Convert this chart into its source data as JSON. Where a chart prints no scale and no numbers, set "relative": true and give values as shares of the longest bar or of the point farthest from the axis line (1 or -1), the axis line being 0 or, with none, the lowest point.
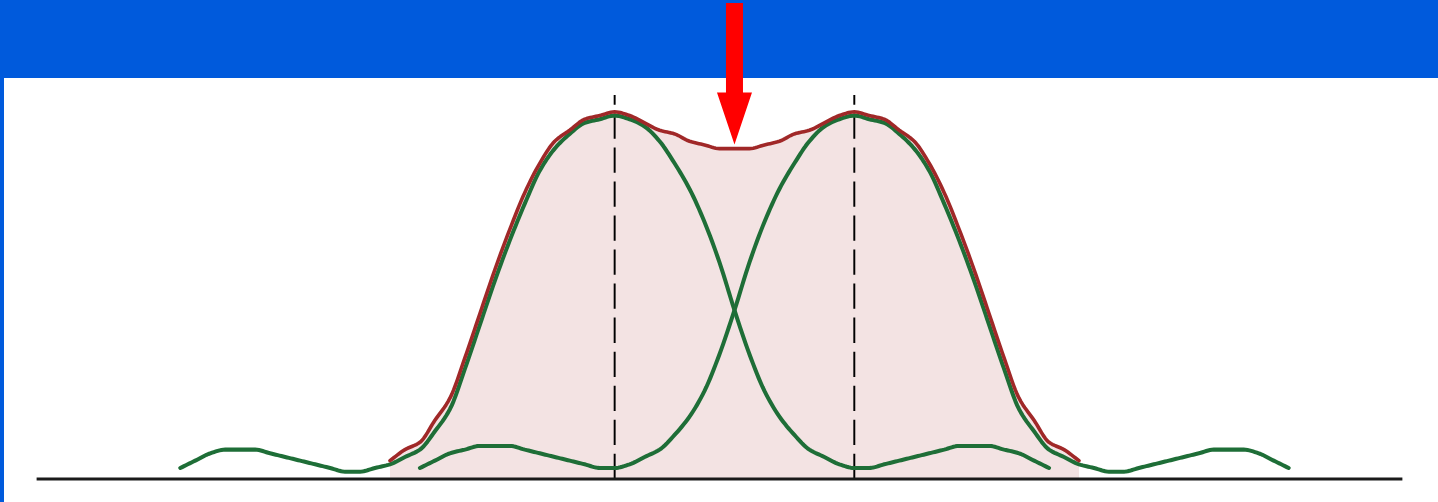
{
  "chart_data": {
    "type": "line",
    "relative": true,
    "categories": [
      null,
      null,
      null,
      null,
      null,
      null,
      null,
      null,
      null,
      null,
      null,
      null,
      null,
      null,
      null,
      null,
      null,
      null,
      null,
      null,
      null,
      null,
      null,
      null,
      null,
      null,
      null,
      null,
      null,
      null,
      null,
      null,
      null,
      null,
      null,
      null,
      null,
      null,
      null,
      null,
      null,
      null,
      null,
      null,
      null,
      null,
      null,
      null,
      null,
      null,
      null,
      null,
      null,
      null,
      null,
      null,
      null,
      null,
      null,
      null,
      null,
      null,
      null,
      null,
      null,
      null,
      null,
      null,
      null,
      null,
      null,
      null,
      null,
      null,
      null,
      null,
      null,
      null,
      null,
      null,
      null,
      null,
      null,
      null,
      null,
      null,
      null,
      null,
      null,
      null,
      null
    ],
    "series": [
      {
        "type": "area",
        "color": "#a02828",
        "values": [
          null,
          null,
          null,
          null,
          null,
          null,
          null,
          null,
          null,
          null,
          null,
          null,
          null,
          null,
          null,
          null,
          null,
          null,
          null,
          null,
          null,
          null,
          null,
          0.05,
          0.08,
          0.1,
          0.16,
          0.22,
          0.33,
          0.45,
          0.57,
          0.68,
          0.78,
          0.86,
          0.92,
          0.95,
          0.98,
          0.99,
          1.0,
          0.99,
          0.97,
          0.95,
          0.94,
          0.92,
          0.91,
          0.9,
          0.9,
          0.9,
          0.91,
          0.92,
          0.94,
          0.95,
          0.97,
          0.99,
          1.0,
          0.99,
          0.98,
          0.95,
          0.92,
          0.86,
          0.78,
          0.68,
          0.57,
          0.45,
          0.33,
          0.22,
          0.16,
          0.1,
          0.08,
          0.05,
          null,
          null,
          null,
          null,
          null,
          null,
          null,
          null,
          null,
          null,
          null,
          null,
          null,
          null,
          null,
          null,
          null,
          null,
          null,
          null,
          null
        ]
      },
      {
        "color": "#1e6e37",
        "values": [
          null,
          null,
          null,
          null,
          null,
          null,
          null,
          null,
          null,
          0.03,
          0.05,
          0.07,
          0.08,
          0.08,
          0.08,
          0.07,
          0.06,
          0.05,
          0.04,
          0.03,
          0.02,
          0.02,
          0.03,
          0.04,
          0.06,
          0.08,
          0.13,
          0.19,
          0.3,
          0.42,
          0.54,
          0.65,
          0.75,
          0.84,
          0.9,
          0.94,
          0.97,
          0.98,
          0.99,
          0.98,
          0.96,
          0.92,
          0.86,
          0.79,
          0.7,
          0.59,
          0.46,
          0.34,
          0.24,
          0.17,
          0.12,
          0.08,
          0.06,
          0.04,
          0.03,
          0.03,
          0.04,
          0.05,
          0.06,
          0.07,
          0.08,
          0.09,
          0.09,
          0.09,
          0.08,
          0.07,
          0.05,
          0.03,
          null,
          null,
          null,
          null,
          null,
          null,
          null,
          null,
          null,
          null,
          null,
          null,
          null,
          null,
          null,
          null,
          null,
          null,
          null,
          null,
          null,
          null,
          null
        ]
      },
      {
        "color": "#1e6e37",
        "values": [
          null,
          null,
          null,
          null,
          null,
          null,
          null,
          null,
          null,
          null,
          null,
          null,
          null,
          null,
          null,
          null,
          null,
          null,
          null,
          null,
          null,
          null,
          null,
          null,
          null,
          0.03,
          0.05,
          0.07,
          0.08,
          0.09,
          0.09,
          0.09,
          0.08,
          0.07,
          0.06,
          0.05,
          0.04,
          0.03,
          0.03,
          0.04,
          0.06,
          0.08,
          0.12,
          0.17,
          0.24,
          0.34,
          0.46,
          0.59,
          0.7,
          0.79,
          0.86,
          0.92,
          0.96,
          0.98,
          0.99,
          0.98,
          0.97,
          0.94,
          0.9,
          0.84,
          0.75,
          0.65,
          0.54,
          0.42,
          0.3,
          0.19,
          0.13,
          0.08,
          0.06,
          0.04,
          0.03,
          0.02,
          0.02,
          0.03,
          0.04,
          0.05,
          0.06,
          0.07,
          0.08,
          0.08,
          0.08,
          0.07,
          0.05,
          0.03,
          null,
          null,
          null,
          null,
          null,
          null,
          null
        ]
      }
    ]
  }
}
